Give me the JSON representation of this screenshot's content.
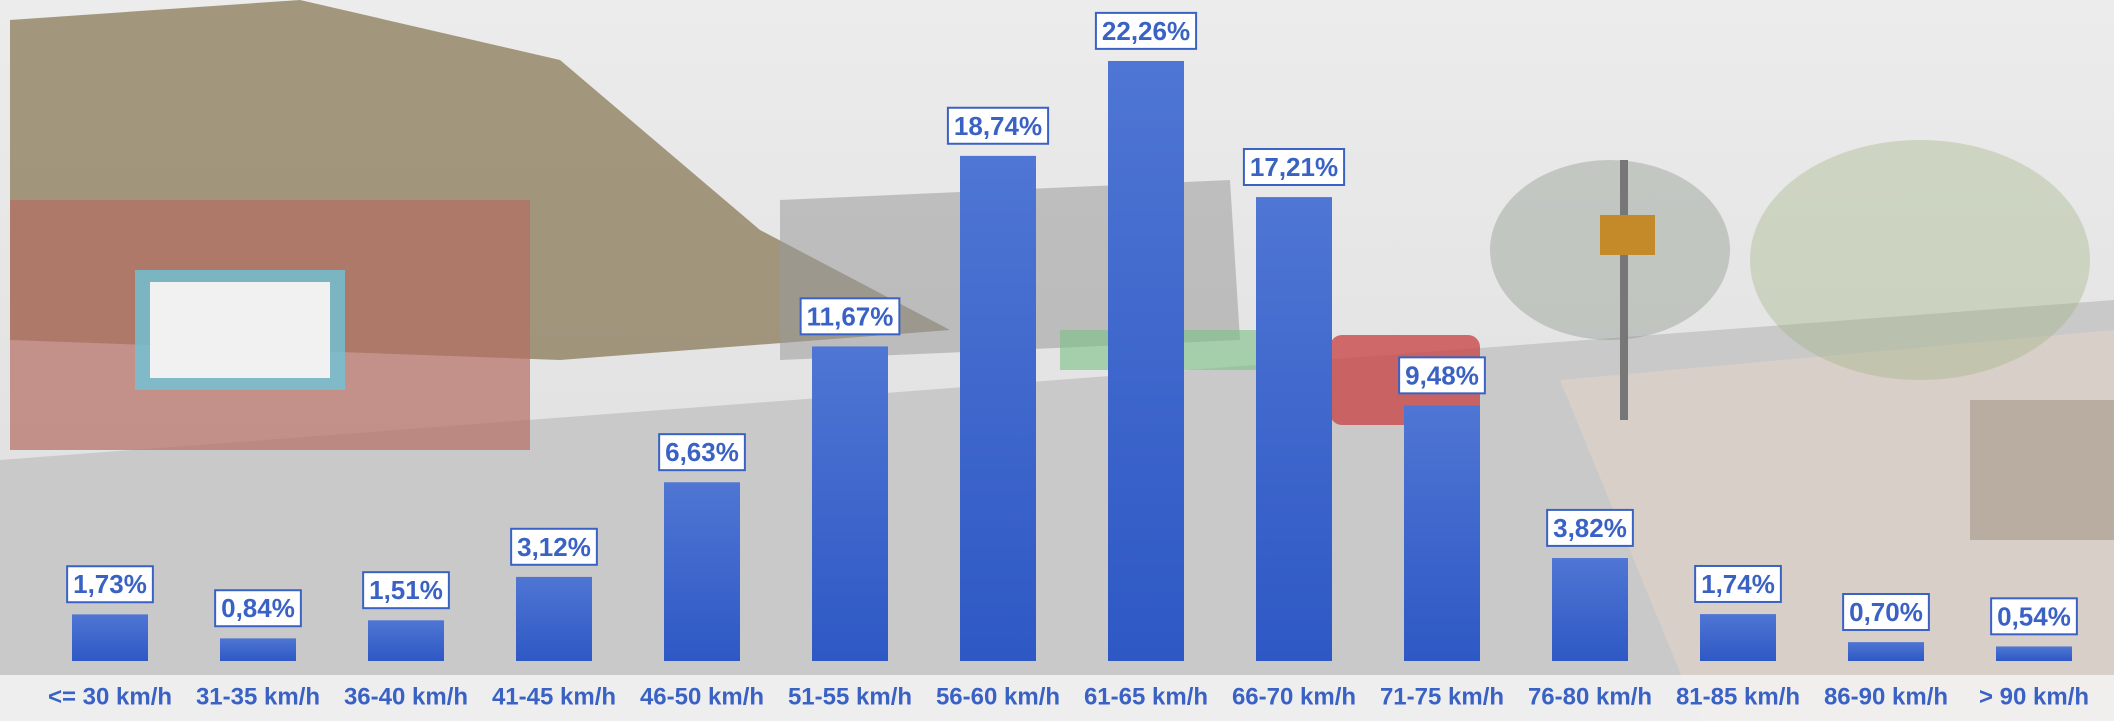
{
  "chart_data": {
    "type": "bar",
    "categories": [
      "<= 30 km/h",
      "31-35 km/h",
      "36-40 km/h",
      "41-45 km/h",
      "46-50 km/h",
      "51-55 km/h",
      "56-60 km/h",
      "61-65 km/h",
      "66-70 km/h",
      "71-75 km/h",
      "76-80 km/h",
      "81-85 km/h",
      "86-90 km/h",
      "> 90 km/h"
    ],
    "values": [
      1.73,
      0.84,
      1.51,
      3.12,
      6.63,
      11.67,
      18.74,
      22.26,
      17.21,
      9.48,
      3.82,
      1.74,
      0.7,
      0.54
    ],
    "value_labels": [
      "1,73%",
      "0,84%",
      "1,51%",
      "3,12%",
      "6,63%",
      "11,67%",
      "18,74%",
      "22,26%",
      "17,21%",
      "9,48%",
      "3,82%",
      "1,74%",
      "0,70%",
      "0,54%"
    ],
    "color": "#3a64cc"
  }
}
